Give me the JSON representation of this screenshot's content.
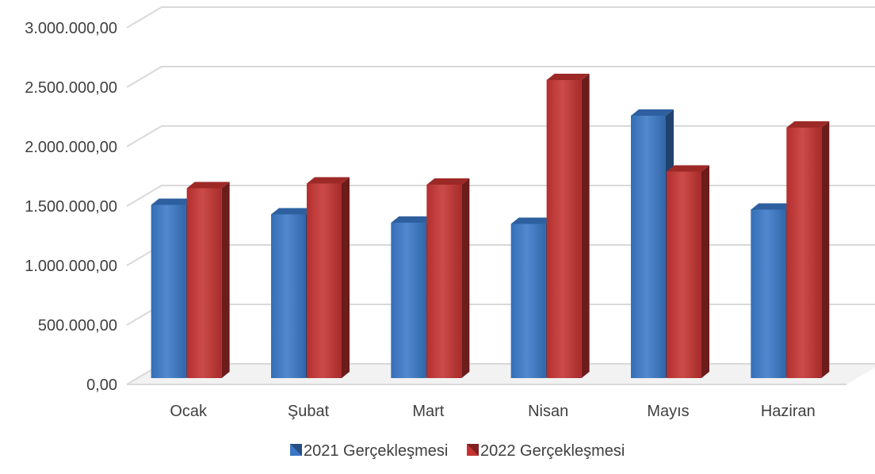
{
  "chart_data": {
    "type": "bar",
    "title": "",
    "xlabel": "",
    "ylabel": "",
    "categories": [
      "Ocak",
      "Şubat",
      "Mart",
      "Nisan",
      "Mayıs",
      "Haziran"
    ],
    "series": [
      {
        "name": "2021 Gerçekleşmesi",
        "color": "#3A78C7",
        "values": [
          1510000,
          1430000,
          1360000,
          1350000,
          2260000,
          1470000
        ]
      },
      {
        "name": "2022 Gerçekleşmesi",
        "color": "#C43331",
        "values": [
          1650000,
          1690000,
          1680000,
          2560000,
          1790000,
          2160000
        ]
      }
    ],
    "ylim": [
      0,
      3000000
    ],
    "yticks": [
      0,
      500000,
      1000000,
      1500000,
      2000000,
      2500000,
      3000000
    ],
    "ytick_labels": [
      "0,00",
      "500.000,00",
      "1.000.000,00",
      "1.500.000,00",
      "2.000.000,00",
      "2.500.000,00",
      "3.000.000,00"
    ],
    "grid": true,
    "legend_position": "bottom",
    "style": "3d-column"
  }
}
